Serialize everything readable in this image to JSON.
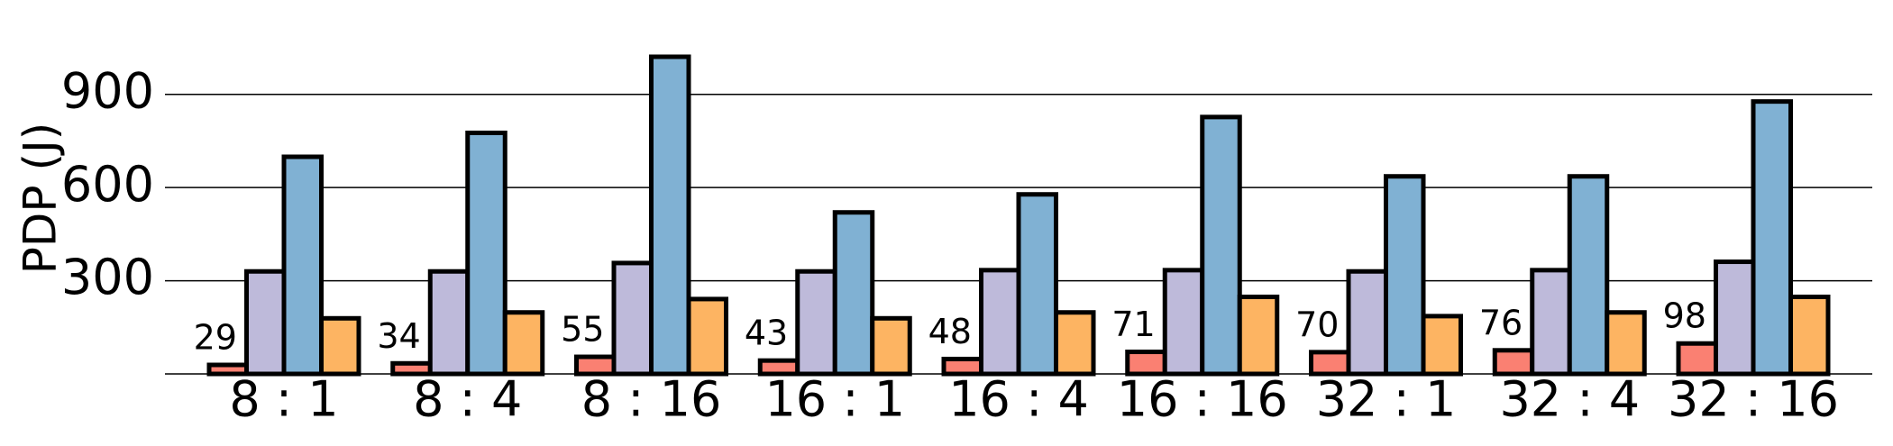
{
  "chart_data": {
    "type": "bar",
    "y_label": "PDP (J)",
    "categories": [
      "8 : 1",
      "8 : 4",
      "8 : 16",
      "16 : 1",
      "16 : 4",
      "16 : 16",
      "32 : 1",
      "32 : 4",
      "32 : 16"
    ],
    "series": [
      {
        "color": "#fa8072",
        "values": [
          29,
          34,
          55,
          43,
          48,
          71,
          70,
          76,
          98
        ],
        "show_values": true
      },
      {
        "color": "#bebada",
        "values": [
          330,
          330,
          357,
          330,
          334,
          334,
          330,
          334,
          361
        ]
      },
      {
        "color": "#80b1d3",
        "values": [
          699,
          776,
          1021,
          520,
          578,
          827,
          636,
          636,
          877
        ]
      },
      {
        "color": "#fdb462",
        "values": [
          179,
          198,
          241,
          179,
          198,
          248,
          186,
          198,
          248
        ]
      }
    ],
    "ylim": [
      0,
      1050
    ],
    "yticks": [
      300,
      600,
      900
    ],
    "grid": true
  }
}
